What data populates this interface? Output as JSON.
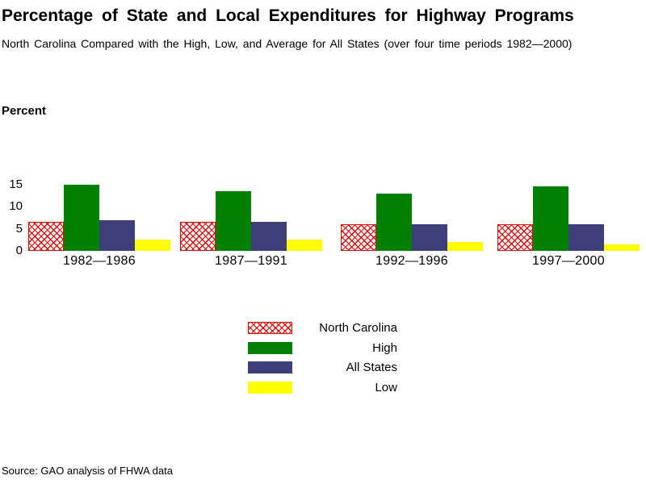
{
  "page": {
    "source": "Source: GAO analysis of FHWA data"
  },
  "colors": {
    "background": "#ffffff",
    "text": "#000000",
    "north_carolina_red": "#e60000",
    "high_green": "#008000",
    "all_states_navy": "#3e3e78",
    "low_yellow": "#ffff00"
  },
  "chart_data": {
    "type": "bar",
    "title": "Percentage of State and Local Expenditures for Highway Programs",
    "subtitle": "North Carolina Compared with the High, Low, and Average for All States (over four time periods 1982—2000)",
    "ylabel": "Percent",
    "xlabel": "",
    "ylim": [
      0,
      15
    ],
    "yticks": [
      15,
      10,
      5,
      0
    ],
    "grid": false,
    "legend_position": "bottom-center",
    "categories": [
      "1982—1986",
      "1987—1991",
      "1992—1996",
      "1997—2000"
    ],
    "series": [
      {
        "name": "North Carolina",
        "color": "#e60000",
        "pattern": "crosshatch",
        "values": [
          6.5,
          6.5,
          6.0,
          6.0
        ]
      },
      {
        "name": "High",
        "color": "#008000",
        "pattern": "solid",
        "values": [
          15.0,
          13.5,
          13.0,
          14.5
        ]
      },
      {
        "name": "All States",
        "color": "#3e3e78",
        "pattern": "solid",
        "values": [
          7.0,
          6.5,
          6.0,
          6.0
        ]
      },
      {
        "name": "Low",
        "color": "#ffff00",
        "pattern": "solid",
        "values": [
          2.5,
          2.5,
          2.0,
          1.5
        ]
      }
    ]
  }
}
